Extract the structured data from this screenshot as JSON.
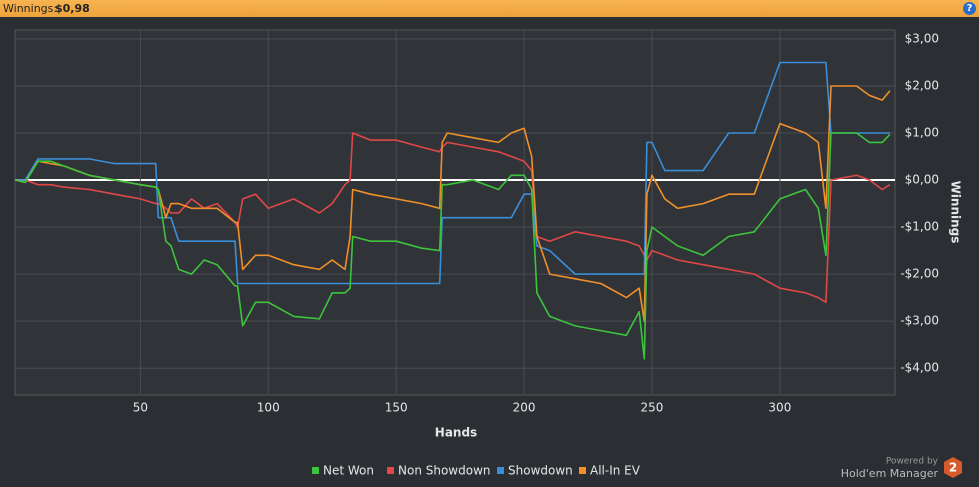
{
  "header": {
    "label": "Winnings:",
    "value": "$0,98",
    "help": "?"
  },
  "branding": {
    "powered_by": "Powered by",
    "product": "Hold'em Manager",
    "badge": "2"
  },
  "chart_data": {
    "type": "line",
    "x_label": "Hands",
    "y_label": "Winnings",
    "xlim": [
      1,
      345
    ],
    "ylim": [
      -4.57,
      3.19
    ],
    "xticks": [
      50,
      100,
      150,
      200,
      250,
      300
    ],
    "yticks": [
      {
        "value": 3,
        "label": "$3,00"
      },
      {
        "value": 2,
        "label": "$2,00"
      },
      {
        "value": 1,
        "label": "$1,00"
      },
      {
        "value": 0,
        "label": "$0,00"
      },
      {
        "value": -1,
        "label": "-$1,00"
      },
      {
        "value": -2,
        "label": "-$2,00"
      },
      {
        "value": -3,
        "label": "-$3,00"
      },
      {
        "value": -4,
        "label": "-$4,00"
      }
    ],
    "grid": true,
    "y_axis_side": "right",
    "legend": "bottom",
    "x": [
      1,
      5,
      10,
      15,
      20,
      30,
      40,
      50,
      56,
      57,
      60,
      62,
      65,
      70,
      75,
      80,
      87,
      88,
      90,
      95,
      100,
      110,
      120,
      125,
      130,
      132,
      133,
      140,
      150,
      160,
      167,
      168,
      170,
      180,
      190,
      195,
      200,
      203,
      205,
      210,
      220,
      230,
      240,
      245,
      247,
      248,
      250,
      255,
      260,
      270,
      280,
      290,
      300,
      310,
      315,
      318,
      320,
      330,
      335,
      340,
      343
    ],
    "series": [
      {
        "name": "Net Won",
        "color": "#3cc43c",
        "values": [
          0,
          -0.05,
          0.4,
          0.4,
          0.3,
          0.1,
          0,
          -0.1,
          -0.15,
          -0.2,
          -1.3,
          -1.4,
          -1.9,
          -2.0,
          -1.7,
          -1.8,
          -2.25,
          -2.25,
          -3.1,
          -2.6,
          -2.6,
          -2.9,
          -2.95,
          -2.4,
          -2.4,
          -2.3,
          -1.2,
          -1.3,
          -1.3,
          -1.45,
          -1.5,
          -0.1,
          -0.1,
          0.0,
          -0.2,
          0.1,
          0.1,
          -0.2,
          -2.4,
          -2.9,
          -3.1,
          -3.2,
          -3.3,
          -2.8,
          -3.8,
          -1.5,
          -1.0,
          -1.2,
          -1.4,
          -1.6,
          -1.2,
          -1.1,
          -0.4,
          -0.2,
          -0.6,
          -1.6,
          1.0,
          1.0,
          0.8,
          0.8,
          0.97
        ]
      },
      {
        "name": "Non Showdown",
        "color": "#e04848",
        "values": [
          0,
          0,
          -0.1,
          -0.1,
          -0.15,
          -0.2,
          -0.3,
          -0.4,
          -0.5,
          -0.5,
          -0.6,
          -0.7,
          -0.7,
          -0.4,
          -0.6,
          -0.5,
          -0.9,
          -1.0,
          -0.4,
          -0.3,
          -0.6,
          -0.4,
          -0.7,
          -0.5,
          -0.1,
          0.0,
          1.0,
          0.85,
          0.85,
          0.7,
          0.6,
          0.7,
          0.8,
          0.7,
          0.6,
          0.5,
          0.4,
          0.2,
          -1.2,
          -1.3,
          -1.1,
          -1.2,
          -1.3,
          -1.4,
          -1.6,
          -1.7,
          -1.5,
          -1.6,
          -1.7,
          -1.8,
          -1.9,
          -2.0,
          -2.3,
          -2.4,
          -2.5,
          -2.6,
          0.0,
          0.1,
          0.0,
          -0.2,
          -0.1
        ]
      },
      {
        "name": "Showdown",
        "color": "#3a8fd8",
        "values": [
          0,
          0,
          0.45,
          0.45,
          0.45,
          0.45,
          0.35,
          0.35,
          0.35,
          -0.8,
          -0.8,
          -0.8,
          -1.3,
          -1.3,
          -1.3,
          -1.3,
          -1.3,
          -2.2,
          -2.2,
          -2.2,
          -2.2,
          -2.2,
          -2.2,
          -2.2,
          -2.2,
          -2.2,
          -2.2,
          -2.2,
          -2.2,
          -2.2,
          -2.2,
          -0.8,
          -0.8,
          -0.8,
          -0.8,
          -0.8,
          -0.3,
          -0.3,
          -1.4,
          -1.5,
          -2.0,
          -2.0,
          -2.0,
          -2.0,
          -2.0,
          0.8,
          0.8,
          0.2,
          0.2,
          0.2,
          1.0,
          1.0,
          2.5,
          2.5,
          2.5,
          2.5,
          1.0,
          1.0,
          1.0,
          1.0,
          1.0
        ]
      },
      {
        "name": "All-In EV",
        "color": "#f0902a",
        "values": [
          0,
          -0.05,
          0.4,
          0.35,
          0.3,
          0.1,
          0,
          -0.1,
          -0.15,
          -0.2,
          -0.8,
          -0.5,
          -0.5,
          -0.6,
          -0.6,
          -0.6,
          -0.9,
          -0.9,
          -1.9,
          -1.6,
          -1.6,
          -1.8,
          -1.9,
          -1.7,
          -1.9,
          -1.2,
          -0.2,
          -0.3,
          -0.4,
          -0.5,
          -0.6,
          0.8,
          1.0,
          0.9,
          0.8,
          1.0,
          1.1,
          0.5,
          -1.2,
          -2.0,
          -2.1,
          -2.2,
          -2.5,
          -2.3,
          -3.0,
          -0.3,
          0.1,
          -0.4,
          -0.6,
          -0.5,
          -0.3,
          -0.3,
          1.2,
          1.0,
          0.8,
          -0.6,
          2.0,
          2.0,
          1.8,
          1.7,
          1.9
        ]
      }
    ]
  }
}
